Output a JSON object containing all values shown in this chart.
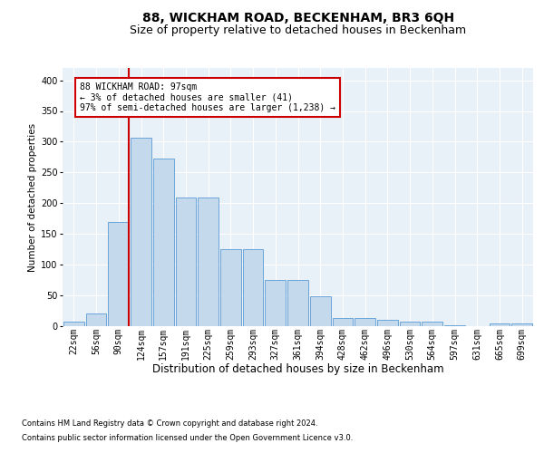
{
  "title": "88, WICKHAM ROAD, BECKENHAM, BR3 6QH",
  "subtitle": "Size of property relative to detached houses in Beckenham",
  "xlabel": "Distribution of detached houses by size in Beckenham",
  "ylabel": "Number of detached properties",
  "footnote1": "Contains HM Land Registry data © Crown copyright and database right 2024.",
  "footnote2": "Contains public sector information licensed under the Open Government Licence v3.0.",
  "annotation_line1": "88 WICKHAM ROAD: 97sqm",
  "annotation_line2": "← 3% of detached houses are smaller (41)",
  "annotation_line3": "97% of semi-detached houses are larger (1,238) →",
  "bar_labels": [
    "22sqm",
    "56sqm",
    "90sqm",
    "124sqm",
    "157sqm",
    "191sqm",
    "225sqm",
    "259sqm",
    "293sqm",
    "327sqm",
    "361sqm",
    "394sqm",
    "428sqm",
    "462sqm",
    "496sqm",
    "530sqm",
    "564sqm",
    "597sqm",
    "631sqm",
    "665sqm",
    "699sqm"
  ],
  "bar_values": [
    7,
    20,
    170,
    307,
    272,
    210,
    210,
    125,
    125,
    75,
    75,
    48,
    14,
    13,
    10,
    8,
    8,
    2,
    0,
    4,
    4
  ],
  "bar_color": "#c5d9ed",
  "bar_edge_color": "#5b9bd5",
  "background_color": "#e8f0f8",
  "vline_color": "#cc0000",
  "ylim": [
    0,
    420
  ],
  "yticks": [
    0,
    50,
    100,
    150,
    200,
    250,
    300,
    350,
    400
  ],
  "grid_color": "#ffffff",
  "title_fontsize": 10,
  "subtitle_fontsize": 9,
  "tick_fontsize": 7,
  "ylabel_fontsize": 7.5,
  "xlabel_fontsize": 8.5,
  "annot_fontsize": 7,
  "footnote_fontsize": 6
}
